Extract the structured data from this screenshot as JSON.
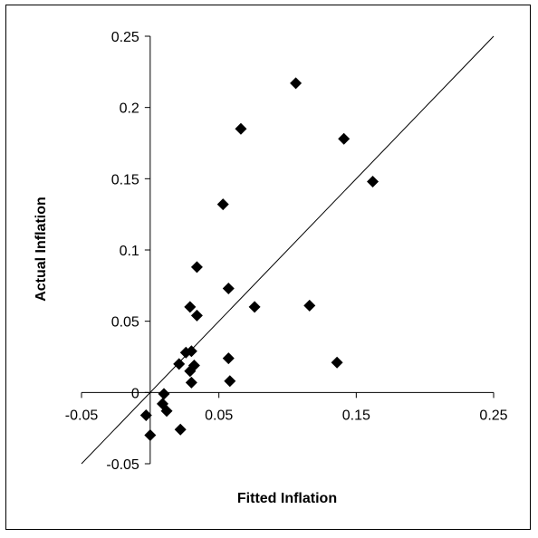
{
  "chart_data": {
    "type": "scatter",
    "title": "",
    "xlabel": "Fitted Inflation",
    "ylabel": "Actual Inflation",
    "xlim": [
      -0.05,
      0.25
    ],
    "ylim": [
      -0.05,
      0.25
    ],
    "x_ticks": [
      {
        "value": -0.05,
        "label": "-0.05"
      },
      {
        "value": 0.05,
        "label": "0.05"
      },
      {
        "value": 0.15,
        "label": "0.15"
      },
      {
        "value": 0.25,
        "label": "0.25"
      }
    ],
    "y_ticks": [
      {
        "value": -0.05,
        "label": "-0.05"
      },
      {
        "value": 0,
        "label": "0"
      },
      {
        "value": 0.05,
        "label": "0.05"
      },
      {
        "value": 0.1,
        "label": "0.1"
      },
      {
        "value": 0.15,
        "label": "0.15"
      },
      {
        "value": 0.2,
        "label": "0.2"
      },
      {
        "value": 0.25,
        "label": "0.25"
      }
    ],
    "grid": false,
    "marker": "diamond",
    "marker_color": "#000000",
    "reference_line": {
      "from": [
        -0.05,
        -0.05
      ],
      "to": [
        0.25,
        0.25
      ]
    },
    "points": [
      {
        "x": 0.106,
        "y": 0.217
      },
      {
        "x": 0.066,
        "y": 0.185
      },
      {
        "x": 0.141,
        "y": 0.178
      },
      {
        "x": 0.162,
        "y": 0.148
      },
      {
        "x": 0.053,
        "y": 0.132
      },
      {
        "x": 0.034,
        "y": 0.088
      },
      {
        "x": 0.057,
        "y": 0.073
      },
      {
        "x": 0.029,
        "y": 0.06
      },
      {
        "x": 0.076,
        "y": 0.06
      },
      {
        "x": 0.116,
        "y": 0.061
      },
      {
        "x": 0.034,
        "y": 0.054
      },
      {
        "x": 0.03,
        "y": 0.029
      },
      {
        "x": 0.026,
        "y": 0.028
      },
      {
        "x": 0.057,
        "y": 0.024
      },
      {
        "x": 0.136,
        "y": 0.021
      },
      {
        "x": 0.021,
        "y": 0.02
      },
      {
        "x": 0.032,
        "y": 0.019
      },
      {
        "x": 0.029,
        "y": 0.015
      },
      {
        "x": 0.058,
        "y": 0.008
      },
      {
        "x": 0.03,
        "y": 0.007
      },
      {
        "x": 0.01,
        "y": -0.001
      },
      {
        "x": 0.009,
        "y": -0.008
      },
      {
        "x": 0.012,
        "y": -0.013
      },
      {
        "x": -0.003,
        "y": -0.016
      },
      {
        "x": 0.022,
        "y": -0.026
      },
      {
        "x": 0.0,
        "y": -0.03
      }
    ]
  }
}
